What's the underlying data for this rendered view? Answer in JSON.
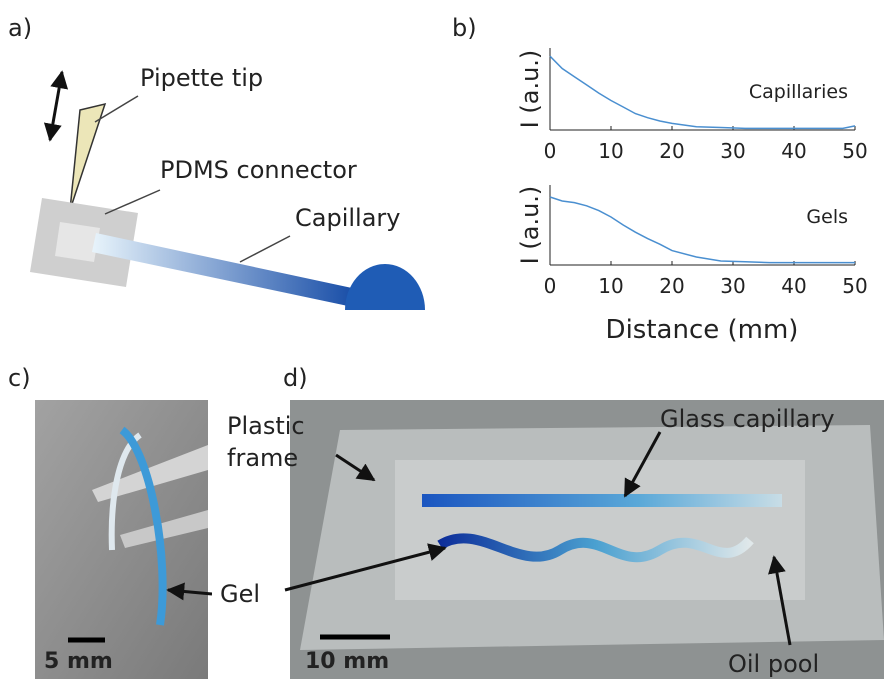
{
  "panel_labels": [
    "a)",
    "b)",
    "c)",
    "d)"
  ],
  "diagram": {
    "pipette_label": "Pipette tip",
    "connector_label": "PDMS connector",
    "capillary_label": "Capillary"
  },
  "chart_data": [
    {
      "type": "line",
      "ylabel": "I (a.u.)",
      "annotation": "Capillaries",
      "x": [
        0,
        2,
        4,
        6,
        8,
        10,
        12,
        14,
        16,
        18,
        20,
        24,
        28,
        32,
        36,
        40,
        44,
        48,
        50
      ],
      "series": [
        {
          "color": "#4a8fd0",
          "values": [
            0.9,
            0.75,
            0.65,
            0.55,
            0.45,
            0.36,
            0.28,
            0.2,
            0.15,
            0.11,
            0.08,
            0.04,
            0.03,
            0.02,
            0.02,
            0.02,
            0.02,
            0.02,
            0.05
          ]
        }
      ],
      "xlim": [
        0,
        50
      ],
      "xticks": [
        0,
        10,
        20,
        30,
        40,
        50
      ],
      "ylim": [
        0,
        1
      ]
    },
    {
      "type": "line",
      "ylabel": "I (a.u.)",
      "annotation": "Gels",
      "xlabel": "Distance (mm)",
      "x": [
        0,
        2,
        4,
        6,
        8,
        10,
        12,
        14,
        16,
        18,
        20,
        24,
        28,
        32,
        36,
        40,
        44,
        48,
        50
      ],
      "series": [
        {
          "color": "#4a8fd0",
          "values": [
            0.85,
            0.8,
            0.78,
            0.74,
            0.68,
            0.6,
            0.5,
            0.41,
            0.33,
            0.26,
            0.18,
            0.1,
            0.05,
            0.04,
            0.03,
            0.03,
            0.03,
            0.03,
            0.03
          ]
        }
      ],
      "xlim": [
        0,
        50
      ],
      "xticks": [
        0,
        10,
        20,
        30,
        40,
        50
      ],
      "ylim": [
        0,
        1
      ]
    }
  ],
  "photo_c": {
    "gel_label": "Gel",
    "scale_label": "5 mm"
  },
  "photo_d": {
    "frame_label": [
      "Plastic",
      "frame"
    ],
    "capillary_label": "Glass capillary",
    "oil_label": "Oil pool",
    "scale_label": "10 mm"
  }
}
